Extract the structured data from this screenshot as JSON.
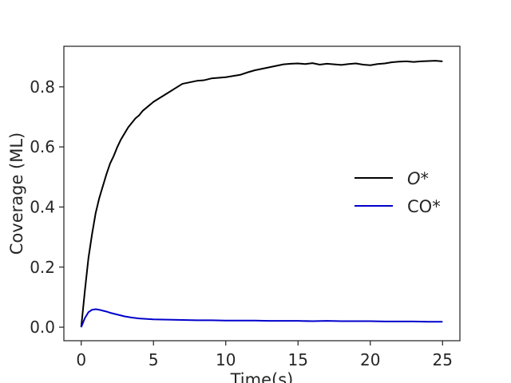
{
  "chart_data": {
    "type": "line",
    "title": "",
    "xlabel": "Time(s)",
    "ylabel": "Coverage (ML)",
    "xlim": [
      -1.2,
      26.2
    ],
    "ylim": [
      -0.045,
      0.935
    ],
    "xticks": [
      0,
      5,
      10,
      15,
      20,
      25
    ],
    "xtick_labels": [
      "0",
      "5",
      "10",
      "15",
      "20",
      "25"
    ],
    "yticks": [
      0.0,
      0.2,
      0.4,
      0.6,
      0.8
    ],
    "ytick_labels": [
      "0.0",
      "0.2",
      "0.4",
      "0.6",
      "0.8"
    ],
    "grid": false,
    "legend_position": "center-right",
    "series": [
      {
        "name": "O*",
        "color": "#000000",
        "x": [
          0,
          0.25,
          0.5,
          0.75,
          1,
          1.25,
          1.5,
          1.75,
          2,
          2.25,
          2.5,
          2.75,
          3,
          3.25,
          3.5,
          3.75,
          4,
          4.25,
          4.5,
          4.75,
          5,
          5.5,
          6,
          6.5,
          7,
          7.5,
          8,
          8.5,
          9,
          9.5,
          10,
          10.5,
          11,
          11.5,
          12,
          12.5,
          13,
          13.5,
          14,
          14.5,
          15,
          15.5,
          16,
          16.5,
          17,
          17.5,
          18,
          18.5,
          19,
          19.5,
          20,
          20.5,
          21,
          21.5,
          22,
          22.5,
          23,
          23.5,
          24,
          24.5,
          25
        ],
        "y": [
          0.0,
          0.12,
          0.23,
          0.31,
          0.38,
          0.43,
          0.47,
          0.51,
          0.545,
          0.57,
          0.6,
          0.625,
          0.645,
          0.665,
          0.68,
          0.695,
          0.705,
          0.72,
          0.73,
          0.74,
          0.75,
          0.765,
          0.78,
          0.795,
          0.81,
          0.815,
          0.82,
          0.822,
          0.828,
          0.83,
          0.832,
          0.836,
          0.84,
          0.848,
          0.855,
          0.86,
          0.865,
          0.87,
          0.875,
          0.877,
          0.878,
          0.876,
          0.879,
          0.874,
          0.877,
          0.875,
          0.873,
          0.876,
          0.878,
          0.874,
          0.872,
          0.876,
          0.878,
          0.882,
          0.884,
          0.885,
          0.883,
          0.885,
          0.886,
          0.887,
          0.885
        ]
      },
      {
        "name": "CO*",
        "color": "#0000cc",
        "x": [
          0,
          0.25,
          0.5,
          0.75,
          1,
          1.25,
          1.5,
          1.75,
          2,
          2.5,
          3,
          3.5,
          4,
          5,
          6,
          7,
          8,
          9,
          10,
          11,
          12,
          13,
          14,
          15,
          16,
          17,
          18,
          19,
          20,
          21,
          22,
          23,
          24,
          25
        ],
        "y": [
          0.0,
          0.03,
          0.05,
          0.058,
          0.06,
          0.058,
          0.055,
          0.052,
          0.048,
          0.042,
          0.036,
          0.032,
          0.029,
          0.026,
          0.025,
          0.024,
          0.023,
          0.023,
          0.022,
          0.022,
          0.022,
          0.021,
          0.021,
          0.021,
          0.02,
          0.021,
          0.02,
          0.02,
          0.02,
          0.019,
          0.019,
          0.019,
          0.018,
          0.018
        ]
      }
    ]
  }
}
